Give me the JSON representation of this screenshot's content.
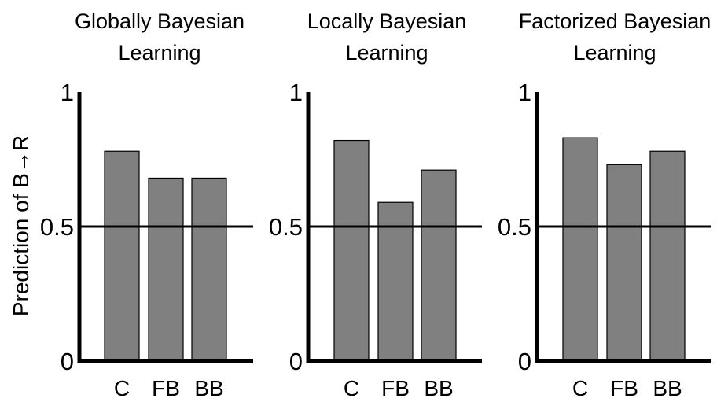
{
  "figure": {
    "ylabel": "Prediction of B→R"
  },
  "chart_data": [
    {
      "type": "bar",
      "title": "Globally Bayesian Learning",
      "title_lines": [
        "Globally Bayesian",
        "Learning"
      ],
      "categories": [
        "C",
        "FB",
        "BB"
      ],
      "values": [
        0.78,
        0.68,
        0.68
      ],
      "ylim": [
        0,
        1
      ],
      "yticks": [
        "0",
        "0.5",
        "1"
      ],
      "reference_line": 0.5,
      "bar_color": "#808080"
    },
    {
      "type": "bar",
      "title": "Locally Bayesian Learning",
      "title_lines": [
        "Locally Bayesian",
        "Learning"
      ],
      "categories": [
        "C",
        "FB",
        "BB"
      ],
      "values": [
        0.82,
        0.59,
        0.71
      ],
      "ylim": [
        0,
        1
      ],
      "yticks": [
        "0",
        "0.5",
        "1"
      ],
      "reference_line": 0.5,
      "bar_color": "#808080"
    },
    {
      "type": "bar",
      "title": "Factorized Bayesian Learning",
      "title_lines": [
        "Factorized Bayesian",
        "Learning"
      ],
      "categories": [
        "C",
        "FB",
        "BB"
      ],
      "values": [
        0.83,
        0.73,
        0.78
      ],
      "ylim": [
        0,
        1
      ],
      "yticks": [
        "0",
        "0.5",
        "1"
      ],
      "reference_line": 0.5,
      "bar_color": "#808080"
    }
  ]
}
